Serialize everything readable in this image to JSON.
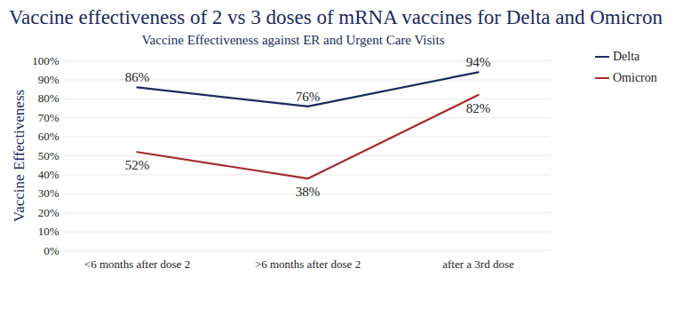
{
  "chart_data": {
    "type": "line",
    "title": "Vaccine effectiveness of 2 vs 3 doses of mRNA vaccines for Delta and Omicron",
    "subtitle": "Vaccine Effectiveness against ER and Urgent Care Visits",
    "y_label": "Vaccine Effectiveness",
    "categories": [
      "<6 months after dose 2",
      ">6 months after dose 2",
      "after a 3rd dose"
    ],
    "series": [
      {
        "name": "Delta",
        "color": "#1c2a5e",
        "values": [
          86,
          76,
          94
        ],
        "value_labels": [
          "86%",
          "76%",
          "94%"
        ]
      },
      {
        "name": "Omicron",
        "color": "#a52a2a",
        "values": [
          52,
          38,
          82
        ],
        "value_labels": [
          "52%",
          "38%",
          "82%"
        ]
      }
    ],
    "ylim": [
      0,
      100
    ],
    "yticks": [
      {
        "value": 0,
        "label": "0%"
      },
      {
        "value": 10,
        "label": "10%"
      },
      {
        "value": 20,
        "label": "20%"
      },
      {
        "value": 30,
        "label": "30%"
      },
      {
        "value": 40,
        "label": "40%"
      },
      {
        "value": 50,
        "label": "50%"
      },
      {
        "value": 60,
        "label": "60%"
      },
      {
        "value": 70,
        "label": "70%"
      },
      {
        "value": 80,
        "label": "80%"
      },
      {
        "value": 90,
        "label": "90%"
      },
      {
        "value": 100,
        "label": "100%"
      }
    ],
    "grid": true,
    "legend": "right",
    "data_labels": true
  }
}
